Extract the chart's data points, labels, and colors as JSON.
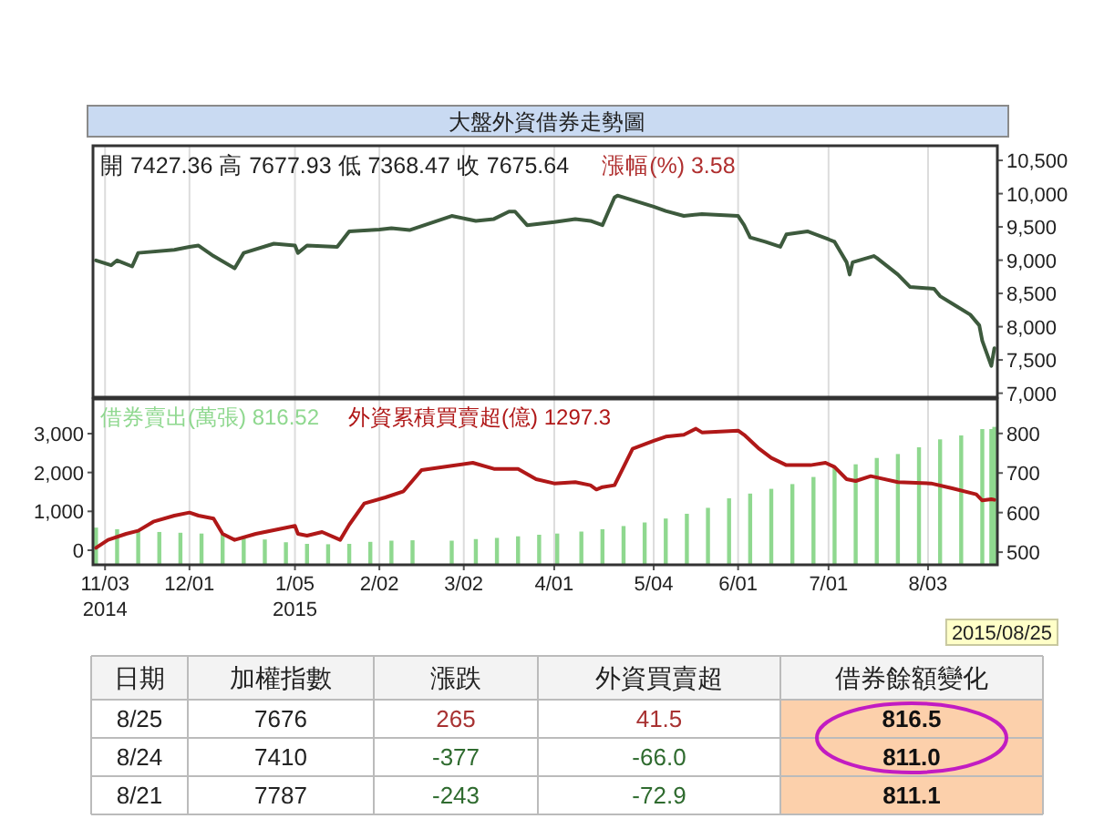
{
  "chart_data": [
    {
      "type": "line",
      "title": "大盤外資借券走勢圖",
      "annotations": [
        "開 7427.36 高 7677.93 低 7368.47 收 7675.64",
        "漲幅(%) 3.58"
      ],
      "xlim": [
        "2014-10-30",
        "2015-08-26"
      ],
      "xticks": [
        {
          "value": "2014-11-03",
          "label": null
        },
        {
          "value": "2014-12-01",
          "label": null
        },
        {
          "value": "2015-01-05",
          "label": null
        },
        {
          "value": "2015-02-02",
          "label": null
        },
        {
          "value": "2015-03-02",
          "label": null
        },
        {
          "value": "2015-04-01",
          "label": null
        },
        {
          "value": "2015-05-04",
          "label": null
        },
        {
          "value": "2015-06-01",
          "label": null
        },
        {
          "value": "2015-07-01",
          "label": null
        },
        {
          "value": "2015-08-03",
          "label": null
        }
      ],
      "y2lim": [
        6940,
        10720
      ],
      "y2ticks": [
        {
          "value": 7000,
          "label": "7,000"
        },
        {
          "value": 7500,
          "label": "7,500"
        },
        {
          "value": 8000,
          "label": "8,000"
        },
        {
          "value": 8500,
          "label": "8,500"
        },
        {
          "value": 9000,
          "label": "9,000"
        },
        {
          "value": 9500,
          "label": "9,500"
        },
        {
          "value": 10000,
          "label": "10,000"
        },
        {
          "value": 10500,
          "label": "10,500"
        }
      ],
      "grid": "x",
      "tick_labels": "y",
      "legend": false,
      "series": [
        {
          "color": "#3d5a3d",
          "axis": "y2",
          "x": [
            "2014-10-31",
            "2014-11-05",
            "2014-11-07",
            "2014-11-12",
            "2014-11-14",
            "2014-11-26",
            "2014-12-01",
            "2014-12-04",
            "2014-12-09",
            "2014-12-16",
            "2014-12-19",
            "2014-12-29",
            "2015-01-05",
            "2015-01-06",
            "2015-01-09",
            "2015-01-19",
            "2015-01-23",
            "2015-02-02",
            "2015-02-06",
            "2015-02-12",
            "2015-02-26",
            "2015-03-06",
            "2015-03-12",
            "2015-03-17",
            "2015-03-19",
            "2015-03-23",
            "2015-04-01",
            "2015-04-08",
            "2015-04-13",
            "2015-04-17",
            "2015-04-21",
            "2015-04-22",
            "2015-05-04",
            "2015-05-08",
            "2015-05-14",
            "2015-05-20",
            "2015-06-01",
            "2015-06-03",
            "2015-06-05",
            "2015-06-10",
            "2015-06-15",
            "2015-06-17",
            "2015-06-24",
            "2015-07-01",
            "2015-07-03",
            "2015-07-07",
            "2015-07-08",
            "2015-07-09",
            "2015-07-16",
            "2015-07-17",
            "2015-07-24",
            "2015-07-28",
            "2015-08-05",
            "2015-08-07",
            "2015-08-12",
            "2015-08-17",
            "2015-08-20",
            "2015-08-21",
            "2015-08-24",
            "2015-08-25"
          ],
          "values": [
            8997,
            8923,
            8997,
            8905,
            9109,
            9155,
            9201,
            9220,
            9062,
            8877,
            9109,
            9248,
            9220,
            9109,
            9220,
            9201,
            9433,
            9461,
            9480,
            9452,
            9665,
            9591,
            9619,
            9730,
            9730,
            9526,
            9572,
            9619,
            9591,
            9526,
            9943,
            9971,
            9804,
            9739,
            9665,
            9693,
            9665,
            9526,
            9341,
            9276,
            9201,
            9387,
            9433,
            9313,
            9276,
            8969,
            8784,
            8969,
            9062,
            9034,
            8784,
            8598,
            8571,
            8459,
            8320,
            8181,
            8020,
            7787,
            7410,
            7676
          ]
        }
      ]
    },
    {
      "type": "bar",
      "annotations": [
        "2015/08/25"
      ],
      "xlim": [
        "2014-10-30",
        "2015-08-26"
      ],
      "xticks": [
        {
          "value": "2014-11-03",
          "label": "11/03\n2014"
        },
        {
          "value": "2014-12-01",
          "label": "12/01"
        },
        {
          "value": "2015-01-05",
          "label": "1/05\n2015"
        },
        {
          "value": "2015-02-02",
          "label": "2/02"
        },
        {
          "value": "2015-03-02",
          "label": "3/02"
        },
        {
          "value": "2015-04-01",
          "label": "4/01"
        },
        {
          "value": "2015-05-04",
          "label": "5/04"
        },
        {
          "value": "2015-06-01",
          "label": "6/01"
        },
        {
          "value": "2015-07-01",
          "label": "7/01"
        },
        {
          "value": "2015-08-03",
          "label": "8/03"
        }
      ],
      "ylim": [
        -375,
        3890
      ],
      "yticks": [
        0,
        {
          "value": 1000,
          "label": "1,000"
        },
        {
          "value": 2000,
          "label": "2,000"
        },
        {
          "value": 3000,
          "label": "3,000"
        }
      ],
      "y2lim": [
        468,
        887
      ],
      "y2ticks": [
        500,
        600,
        700,
        800
      ],
      "grid": "x",
      "legend": "top left",
      "series": [
        {
          "name": "借券賣出(萬張) 816.52",
          "type": "bar",
          "axis": "y2",
          "color": "#8fd88f",
          "x": [
            "2014-10-31",
            "2014-11-07",
            "2014-11-14",
            "2014-11-21",
            "2014-11-28",
            "2014-12-05",
            "2014-12-12",
            "2014-12-19",
            "2014-12-26",
            "2015-01-02",
            "2015-01-09",
            "2015-01-16",
            "2015-01-23",
            "2015-01-30",
            "2015-02-06",
            "2015-02-13",
            "2015-02-26",
            "2015-03-06",
            "2015-03-13",
            "2015-03-20",
            "2015-03-27",
            "2015-04-02",
            "2015-04-10",
            "2015-04-17",
            "2015-04-24",
            "2015-05-01",
            "2015-05-08",
            "2015-05-15",
            "2015-05-22",
            "2015-05-29",
            "2015-06-05",
            "2015-06-12",
            "2015-06-19",
            "2015-06-26",
            "2015-07-03",
            "2015-07-10",
            "2015-07-17",
            "2015-07-24",
            "2015-07-31",
            "2015-08-07",
            "2015-08-14",
            "2015-08-21",
            "2015-08-24",
            "2015-08-25"
          ],
          "values": [
            562,
            558,
            556,
            551,
            549,
            547,
            545,
            540,
            532,
            525,
            521,
            520,
            521,
            526,
            529,
            530,
            529,
            533,
            536,
            540,
            544,
            547,
            552,
            558,
            566,
            575,
            585,
            597,
            612,
            636,
            648,
            660,
            672,
            690,
            712,
            722,
            738,
            748,
            765,
            785,
            795,
            811.1,
            811.0,
            816.52
          ]
        },
        {
          "name": "外資累積買賣超(億) 1297.3",
          "type": "line",
          "color": "#b01818",
          "x": [
            "2014-10-31",
            "2014-11-04",
            "2014-11-10",
            "2014-11-14",
            "2014-11-19",
            "2014-11-26",
            "2014-12-01",
            "2014-12-04",
            "2014-12-09",
            "2014-12-12",
            "2014-12-16",
            "2014-12-23",
            "2015-01-05",
            "2015-01-06",
            "2015-01-09",
            "2015-01-14",
            "2015-01-20",
            "2015-01-23",
            "2015-01-28",
            "2015-02-04",
            "2015-02-10",
            "2015-02-16",
            "2015-03-05",
            "2015-03-12",
            "2015-03-20",
            "2015-03-26",
            "2015-04-01",
            "2015-04-08",
            "2015-04-13",
            "2015-04-15",
            "2015-04-17",
            "2015-04-21",
            "2015-04-27",
            "2015-05-04",
            "2015-05-08",
            "2015-05-14",
            "2015-05-18",
            "2015-05-20",
            "2015-06-01",
            "2015-06-03",
            "2015-06-08",
            "2015-06-12",
            "2015-06-17",
            "2015-06-25",
            "2015-06-30",
            "2015-07-03",
            "2015-07-07",
            "2015-07-10",
            "2015-07-15",
            "2015-07-24",
            "2015-08-04",
            "2015-08-11",
            "2015-08-19",
            "2015-08-21",
            "2015-08-24",
            "2015-08-25"
          ],
          "values": [
            62,
            266,
            422,
            500,
            734,
            891,
            969,
            891,
            813,
            422,
            266,
            422,
            625,
            422,
            375,
            469,
            266,
            656,
            1203,
            1359,
            1516,
            2063,
            2250,
            2094,
            2094,
            1828,
            1719,
            1750,
            1672,
            1563,
            1625,
            1672,
            2609,
            2813,
            2922,
            2969,
            3125,
            3031,
            3078,
            2969,
            2609,
            2375,
            2188,
            2188,
            2250,
            2141,
            1828,
            1781,
            1906,
            1750,
            1719,
            1594,
            1438,
            1281,
            1313,
            1297.3
          ]
        }
      ]
    },
    {
      "type": "other",
      "categories": [
        "日期",
        "加權指數",
        "漲跌",
        "外資買賣超",
        "借券餘額變化"
      ],
      "cell_labels": [
        [
          "8/25",
          "7676",
          "265",
          "41.5",
          "816.5"
        ],
        [
          "8/24",
          "7410",
          "-377",
          "-66.0",
          "811.0"
        ],
        [
          "8/21",
          "7787",
          "-243",
          "-72.9",
          "811.1"
        ]
      ],
      "colors": [
        [
          "#222222",
          "#222222",
          "#a83232",
          "#a83232",
          "#111111"
        ],
        [
          "#222222",
          "#222222",
          "#2f6b2f",
          "#2f6b2f",
          "#111111"
        ],
        [
          "#222222",
          "#222222",
          "#2f6b2f",
          "#2f6b2f",
          "#111111"
        ]
      ]
    }
  ]
}
